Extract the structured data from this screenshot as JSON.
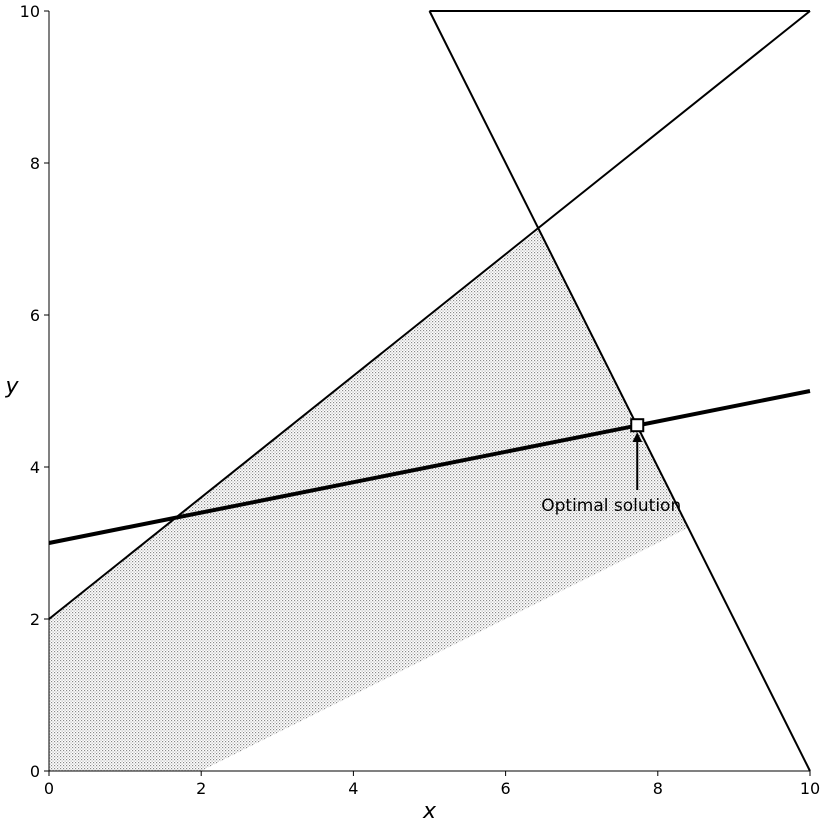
{
  "chart_data": {
    "type": "line",
    "title": "",
    "xlabel": "x",
    "ylabel": "y",
    "xlim": [
      0,
      10
    ],
    "ylim": [
      0,
      10
    ],
    "xticks": [
      0,
      2,
      4,
      6,
      8,
      10
    ],
    "yticks": [
      0,
      2,
      4,
      6,
      8,
      10
    ],
    "grid": false,
    "feasible_region": {
      "vertices": [
        [
          0,
          0
        ],
        [
          2,
          0
        ],
        [
          8.4,
          3.2
        ],
        [
          6.44,
          7.12
        ],
        [
          0,
          2
        ]
      ],
      "fill": "dotted-gray"
    },
    "constraint_lines": [
      {
        "x": [
          5,
          10
        ],
        "y": [
          10,
          0
        ]
      },
      {
        "x": [
          0,
          10
        ],
        "y": [
          2,
          10
        ]
      },
      {
        "x": [
          5,
          10
        ],
        "y": [
          10,
          10
        ]
      }
    ],
    "objective_line": {
      "x": [
        0,
        10
      ],
      "y": [
        3,
        5
      ]
    },
    "optimal_point": {
      "x": 7.73,
      "y": 4.55
    },
    "annotation": {
      "text": "Optimal solution",
      "x": 7.73,
      "y": 3.5
    }
  }
}
